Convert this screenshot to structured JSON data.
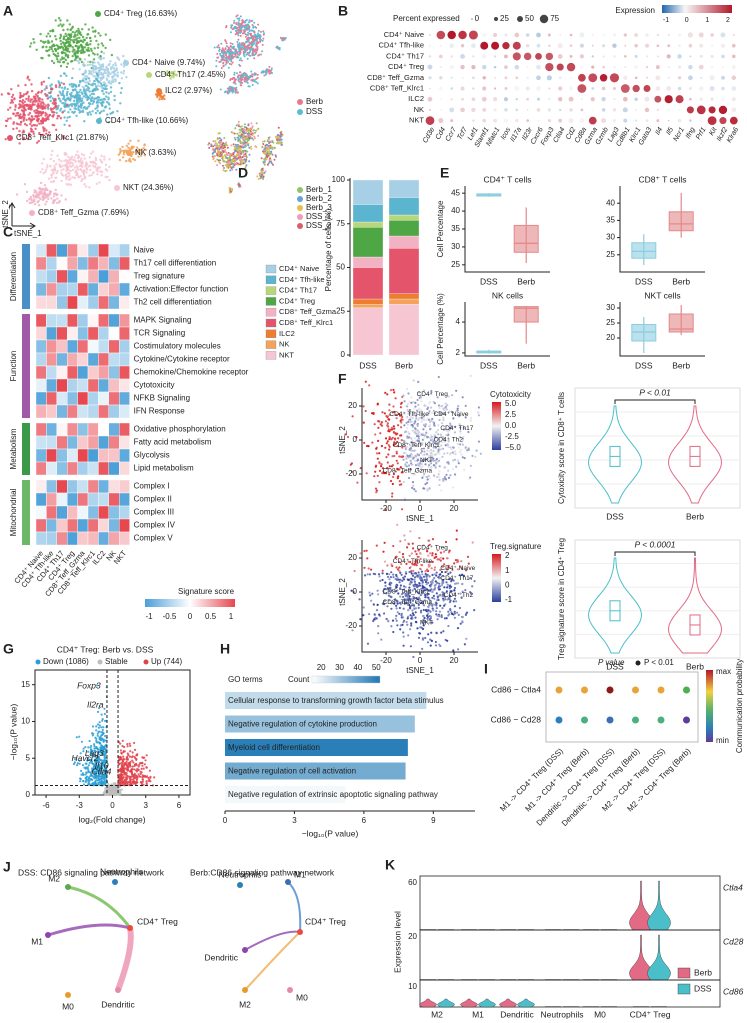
{
  "A": {
    "letter": "A",
    "clusters": [
      {
        "label": "CD4⁺ Treg (16.63%)",
        "color": "#4fa645"
      },
      {
        "label": "CD4⁺ Naive (9.74%)",
        "color": "#a7cfe5"
      },
      {
        "label": "CD4⁺ Th17 (2.45%)",
        "color": "#b7d77a"
      },
      {
        "label": "ILC2 (2.97%)",
        "color": "#ee7d32"
      },
      {
        "label": "CD4⁺ Tfh-like (10.66%)",
        "color": "#5bb5cf"
      },
      {
        "label": "CD8⁺ Teff_Klrc1 (21.87%)",
        "color": "#e4546b"
      },
      {
        "label": "NK (3.63%)",
        "color": "#f3a35a"
      },
      {
        "label": "NKT (24.36%)",
        "color": "#f7c6d3"
      },
      {
        "label": "CD8⁺ Teff_Gzma (7.69%)",
        "color": "#f2b2c4"
      }
    ],
    "x_label": "tSNE_1",
    "y_label": "tSNE_2",
    "groups": [
      {
        "name": "Berb",
        "color": "#e87a90"
      },
      {
        "name": "DSS",
        "color": "#5bbcd6"
      }
    ],
    "samples": [
      {
        "name": "Berb_1",
        "color": "#8fc46b"
      },
      {
        "name": "Berb_2",
        "color": "#6a9fd8"
      },
      {
        "name": "Berb_3",
        "color": "#e5c04a"
      },
      {
        "name": "DSS_1",
        "color": "#f29ab6"
      },
      {
        "name": "DSS_2",
        "color": "#d95f6a"
      }
    ]
  },
  "B": {
    "letter": "B",
    "pct_title": "Percent expressed",
    "pct_ticks": [
      0,
      25,
      50,
      75
    ],
    "expr_title": "Expression",
    "expr_ticks": [
      -1,
      0,
      1,
      2
    ],
    "rows": [
      "CD4⁺ Naive",
      "CD4⁺ Tfh-like",
      "CD4⁺ Th17",
      "CD4⁺ Treg",
      "CD8⁺ Teff_Gzma",
      "CD8⁺ Teff_Klrc1",
      "ILC2",
      "NK",
      "NKT"
    ],
    "genes": [
      "Cd3e",
      "Cd4",
      "Ccr7",
      "Tcf7",
      "Lef1",
      "Slamf1",
      "Nfatc1",
      "Icos",
      "Il17a",
      "Il23r",
      "Cxcr6",
      "Foxp3",
      "Ctla4",
      "Cd2",
      "Cd8a",
      "Gzma",
      "Gzmb",
      "Lag3",
      "Cd8b1",
      "Klrc1",
      "Gata3",
      "Il4",
      "Il5",
      "Ncr1",
      "Ifng",
      "Prf1",
      "Kit",
      "Ikzf2",
      "Klra6"
    ]
  },
  "C": {
    "letter": "C",
    "groups": [
      {
        "name": "Differentiation",
        "color": "#4b8fc7",
        "rows": [
          "Naive",
          "Th17 cell differentiation",
          "Treg signature",
          "Activation:Effector function",
          "Th2 cell differentiation"
        ]
      },
      {
        "name": "Function",
        "color": "#a05aa8",
        "rows": [
          "MAPK Signaling",
          "TCR Signaling",
          "Costimulatory molecules",
          "Cytokine/Cytokine receptor",
          "Chemokine/Chemokine receptor",
          "Cytotoxicity",
          "NFKB Signaling",
          "IFN Response"
        ]
      },
      {
        "name": "Metabolism",
        "color": "#3a9a4a",
        "rows": [
          "Oxidative phosphorylation",
          "Fatty acid metabolism",
          "Glycolysis",
          "Lipid metabolism"
        ]
      },
      {
        "name": "Mitochondrial",
        "color": "#6bb86a",
        "rows": [
          "Complex I",
          "Complex II",
          "Complex III",
          "Complex IV",
          "Complex V"
        ]
      }
    ],
    "columns": [
      "CD4⁺ Naive",
      "CD4⁺ Tfh-like",
      "CD4⁺ Th17",
      "CD4⁺ Treg",
      "CD8⁺ Teff_Gzma",
      "CD8⁺ Teff_Klrc1",
      "ILC2",
      "NK",
      "NKT"
    ],
    "legend_title": "Signature score",
    "legend_ticks": [
      -1,
      -0.5,
      0,
      0.5,
      1
    ]
  },
  "D": {
    "letter": "D",
    "type": "bar",
    "y_label": "Percentage of cells (%)",
    "ylim": [
      0,
      100
    ],
    "yticks": [
      0,
      25,
      50,
      75,
      100
    ],
    "categories": [
      "DSS",
      "Berb"
    ],
    "series": [
      {
        "name": "CD4⁺ Naive",
        "color": "#a7cfe5",
        "values": [
          14,
          10
        ]
      },
      {
        "name": "CD4⁺ Tfh-like",
        "color": "#5bb5cf",
        "values": [
          10,
          10
        ]
      },
      {
        "name": "CD4⁺ Th17",
        "color": "#b7d77a",
        "values": [
          3,
          3
        ]
      },
      {
        "name": "CD4⁺ Treg",
        "color": "#4fa645",
        "values": [
          17,
          9
        ]
      },
      {
        "name": "CD8⁺ Teff_Gzma",
        "color": "#f2b2c4",
        "values": [
          6,
          7
        ]
      },
      {
        "name": "CD8⁺ Teff_Klrc1",
        "color": "#e4546b",
        "values": [
          18,
          26
        ]
      },
      {
        "name": "ILC2",
        "color": "#ee7d32",
        "values": [
          3,
          3
        ]
      },
      {
        "name": "NK",
        "color": "#f3a35a",
        "values": [
          2,
          3
        ]
      },
      {
        "name": "NKT",
        "color": "#f7c6d3",
        "values": [
          27,
          29
        ]
      }
    ]
  },
  "E": {
    "letter": "E",
    "type": "box",
    "y_label": "Cell Percentage",
    "y_label_pct": "Cell Percentage (%)",
    "categories": [
      "DSS",
      "Berb"
    ],
    "colors": [
      "#8ccde0",
      "#e3898b"
    ],
    "plots": [
      {
        "title": "CD4⁺ T cells",
        "ylim": [
          23,
          47
        ],
        "yticks": [
          25,
          30,
          35,
          40,
          45
        ],
        "boxes": [
          [
            44,
            44.2,
            44.5,
            44.8,
            45
          ],
          [
            25.5,
            28.5,
            31,
            36,
            41
          ]
        ]
      },
      {
        "title": "CD8⁺ T cells",
        "ylim": [
          20,
          45
        ],
        "yticks": [
          25,
          30,
          35,
          40
        ],
        "boxes": [
          [
            22,
            24,
            26,
            28.5,
            31
          ],
          [
            30,
            32,
            34,
            37.5,
            43
          ]
        ]
      },
      {
        "title": "NK cells",
        "ylim": [
          1.8,
          5.3
        ],
        "yticks": [
          2,
          4
        ],
        "boxes": [
          [
            1.95,
            2,
            2.05,
            2.12,
            2.2
          ],
          [
            2.6,
            4,
            4.9,
            5,
            5.05
          ]
        ]
      },
      {
        "title": "NKT cells",
        "ylim": [
          14,
          32
        ],
        "yticks": [
          20,
          25,
          30
        ],
        "boxes": [
          [
            15,
            19,
            22,
            24.5,
            27
          ],
          [
            21,
            22,
            23,
            28,
            31
          ]
        ]
      }
    ]
  },
  "F": {
    "letter": "F",
    "x_label": "tSNE_1",
    "y_label": "tSNE_2",
    "xticks": [
      -20,
      0,
      20
    ],
    "yticks": [
      -20,
      0,
      20
    ],
    "maps": [
      {
        "legend_title": "Cytotoxicity",
        "legend_ticks": [
          {
            "value": 5,
            "label": "5.0"
          },
          2.5,
          {
            "value": 0,
            "label": "0.0"
          },
          -2.5,
          {
            "value": -5,
            "label": "−5.0"
          }
        ],
        "labels": [
          "CD4⁺ Treg",
          "CD4⁺ Tfh-like",
          "CD4⁺ Naive",
          "CD4⁺ Th17",
          "CD8⁺ Teff_Klrc1",
          "CD4⁺ Th2",
          "NKT",
          "CD8⁺ Teff_Gzma"
        ]
      },
      {
        "legend_title": "Treg.signature",
        "legend_ticks": [
          2,
          1,
          0,
          -1
        ],
        "labels": [
          "CD4⁺ Treg",
          "CD4⁺ Tfh-like",
          "CD4⁺ Naive",
          "CD4⁺ Th17",
          "CD8⁺ Teff_Klrc1",
          "CD8⁺ Teff_Gzma",
          "CD4⁺ Th2",
          "NKT"
        ]
      }
    ],
    "violins": [
      {
        "p_label": "P < 0.01",
        "y_label": "Cytoxicity score in CD8⁺ T cells"
      },
      {
        "p_label": "P < 0.0001",
        "y_label": "Treg signature score in CD4⁺ Treg"
      }
    ],
    "categories": [
      "DSS",
      "Berb"
    ]
  },
  "G": {
    "letter": "G",
    "type": "scatter",
    "title": "CD4⁺ Treg: Berb vs. DSS",
    "legend": [
      {
        "name": "Down (1086)",
        "color": "#2a9fd6"
      },
      {
        "name": "Stable",
        "color": "#bdbdbd"
      },
      {
        "name": "Up (744)",
        "color": "#e0424a"
      }
    ],
    "genes": [
      "Foxp3",
      "Il2ra",
      "Lag3",
      "Havcr2",
      "Il10",
      "Ctla4"
    ],
    "xlim": [
      -7,
      7
    ],
    "xticks": [
      -6,
      -3,
      0,
      3,
      6
    ],
    "ylim": [
      0,
      17
    ],
    "yticks": [
      0,
      5,
      10,
      15
    ],
    "x_label": "log₂(Fold change)",
    "y_label": "−log₁₀(P value)"
  },
  "H": {
    "letter": "H",
    "type": "bar",
    "legend_title": "GO terms",
    "count_title": "Count",
    "count_ticks": [
      20,
      30,
      40,
      50
    ],
    "clim": [
      15,
      52
    ],
    "xlim": [
      0,
      10.8
    ],
    "xticks": [
      0,
      3,
      6,
      9
    ],
    "x_label": "−log₁₀(P value)",
    "terms": [
      "Cellular response to transforming growth factor beta stimulus",
      "Negative regulation of cytokine production",
      "Myeloid cell differentiation",
      "Negative regulation of cell activation",
      "Negative regulation of extrinsic apoptotic signaling pathway"
    ],
    "values": [
      8.7,
      8.2,
      7.9,
      7.8,
      5.2
    ],
    "counts": [
      25,
      32,
      50,
      38,
      17
    ]
  },
  "I": {
    "letter": "I",
    "p_title": "P value",
    "p_label": "P < 0.01",
    "rows": [
      "Cd86 − Ctla4",
      "Cd86 − Cd28"
    ],
    "columns": [
      "M1 -> CD4⁺ Treg (DSS)",
      "M1 -> CD4⁺ Treg (Berb)",
      "Dendritic -> CD4⁺ Treg (DSS)",
      "Dendritic -> CD4⁺ Treg (Berb)",
      "M2 -> CD4⁺ Treg (DSS)",
      "M2 -> CD4⁺ Treg (Berb)"
    ],
    "legend_title": "Communication probability",
    "max_label": "max",
    "min_label": "min"
  },
  "J": {
    "letter": "J",
    "networks": [
      {
        "title": "DSS: CD86 signaling pathway network",
        "nodes": [
          "M2",
          "Neutrophils",
          "M1",
          "CD4⁺ Treg",
          "M0",
          "Dendritic"
        ]
      },
      {
        "title": "Berb:CD86 signaling pathway network",
        "nodes": [
          "Neutrophils",
          "M1",
          "CD4⁺ Treg",
          "Dendritic",
          "M2",
          "M0"
        ]
      }
    ]
  },
  "K": {
    "letter": "K",
    "y_label": "Expression level",
    "genes": [
      {
        "name": "Ctla4",
        "tick": 60
      },
      {
        "name": "Cd28",
        "tick": 20
      },
      {
        "name": "Cd86",
        "tick": 10
      }
    ],
    "categories": [
      "M2",
      "M1",
      "Dendritic",
      "Neutrophils",
      "M0",
      "CD4⁺ Treg"
    ],
    "legend": [
      {
        "name": "Berb",
        "color": "#e26a85"
      },
      {
        "name": "DSS",
        "color": "#4bbfc9"
      }
    ]
  }
}
